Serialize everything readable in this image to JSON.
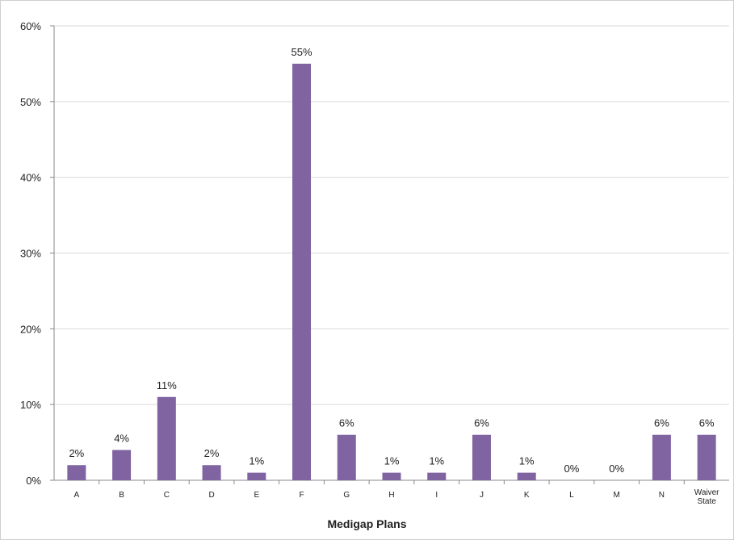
{
  "chart_data": {
    "type": "bar",
    "title": "",
    "xlabel": "Medigap Plans",
    "ylabel": "",
    "ylim": [
      0,
      60
    ],
    "yticks": [
      "0%",
      "10%",
      "20%",
      "30%",
      "40%",
      "50%",
      "60%"
    ],
    "categories": [
      "A",
      "B",
      "C",
      "D",
      "E",
      "F",
      "G",
      "H",
      "I",
      "J",
      "K",
      "L",
      "M",
      "N",
      "Waiver State"
    ],
    "values": [
      2,
      4,
      11,
      2,
      1,
      55,
      6,
      1,
      1,
      6,
      1,
      0,
      0,
      6,
      6
    ],
    "data_labels": [
      "2%",
      "4%",
      "11%",
      "2%",
      "1%",
      "55%",
      "6%",
      "1%",
      "1%",
      "6%",
      "1%",
      "0%",
      "0%",
      "6%",
      "6%"
    ],
    "bar_color": "#8064a2",
    "grid": true,
    "legend": "none"
  }
}
